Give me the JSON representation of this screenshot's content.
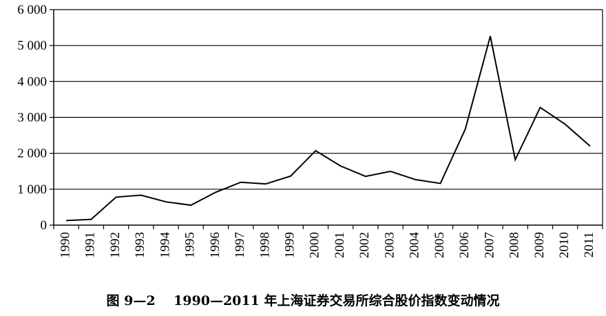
{
  "chart_data": {
    "type": "line",
    "title": "图 9—2    1990—2011 年上海证券交易所综合股价指数变动情况",
    "xlabel": "",
    "ylabel": "",
    "categories": [
      "1990",
      "1991",
      "1992",
      "1993",
      "1994",
      "1995",
      "1996",
      "1997",
      "1998",
      "1999",
      "2000",
      "2001",
      "2002",
      "2003",
      "2004",
      "2005",
      "2006",
      "2007",
      "2008",
      "2009",
      "2010",
      "2011"
    ],
    "y_tick_labels": [
      "0",
      "1 000",
      "2 000",
      "3 000",
      "4 000",
      "5 000",
      "6 000"
    ],
    "y_ticks": [
      0,
      1000,
      2000,
      3000,
      4000,
      5000,
      6000
    ],
    "ylim": [
      0,
      6000
    ],
    "grid": true,
    "legend": "none",
    "series": [
      {
        "values": [
          127,
          160,
          780,
          833,
          648,
          555,
          917,
          1194,
          1147,
          1367,
          2073,
          1646,
          1358,
          1497,
          1267,
          1161,
          2676,
          5262,
          1821,
          3277,
          2809,
          2199
        ],
        "color": "#000000"
      }
    ]
  }
}
